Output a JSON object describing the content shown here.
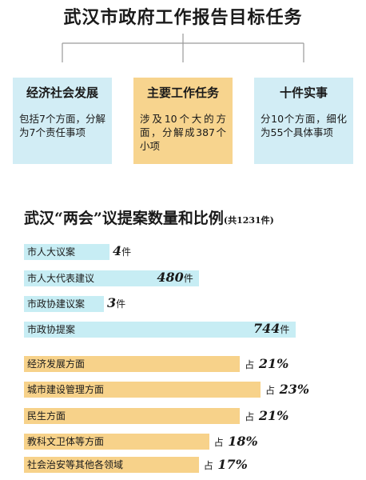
{
  "header": {
    "title": "武汉市政府工作报告目标任务",
    "boxes": [
      {
        "title": "经济社会发展",
        "desc": "包括7个方面，分解为7个责任事项"
      },
      {
        "title": "主要工作任务",
        "desc": "涉及10个大的方面，分解成387个小项"
      },
      {
        "title": "十件实事",
        "desc": "分10个方面，细化为55个具体事项"
      }
    ]
  },
  "colors": {
    "blue": "#c7edf4",
    "orange": "#f7d28a",
    "box_blue": "#d2edf5",
    "box_orange": "#f7d48e"
  },
  "chart_data": [
    {
      "type": "bar",
      "orientation": "horizontal",
      "title": "武汉“两会”议提案数量和比例",
      "subtitle": "(共1231件)",
      "unit": "件",
      "categories": [
        "市人大议案",
        "市人大代表建议",
        "市政协建议案",
        "市政协提案"
      ],
      "values": [
        4,
        480,
        3,
        744
      ]
    },
    {
      "type": "bar",
      "orientation": "horizontal",
      "value_prefix": "占",
      "unit": "%",
      "categories": [
        "经济发展方面",
        "城市建设管理方面",
        "民生方面",
        "教科文卫体等方面",
        "社会治安等其他各领域"
      ],
      "values": [
        21,
        23,
        21,
        18,
        17
      ]
    }
  ]
}
